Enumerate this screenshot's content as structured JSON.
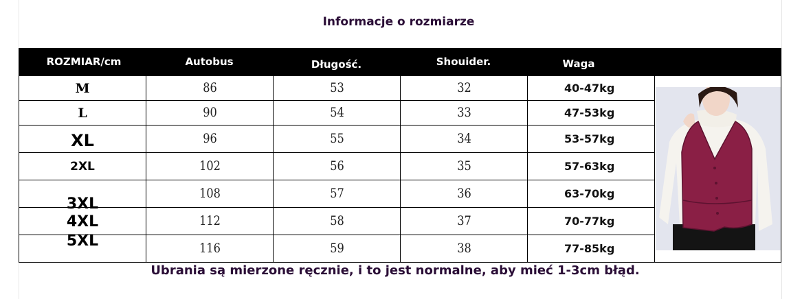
{
  "title": "Informacje o rozmiarze",
  "headers": [
    "ROZMIAR/cm",
    "Autobus",
    "Długość.",
    "Shouider.",
    "Waga"
  ],
  "rows": [
    {
      "size": "M",
      "bust": "86",
      "length": "53",
      "shoulder": "32",
      "weight": "40-47kg"
    },
    {
      "size": "L",
      "bust": "90",
      "length": "54",
      "shoulder": "33",
      "weight": "47-53kg"
    },
    {
      "size": "XL",
      "bust": "96",
      "length": "55",
      "shoulder": "34",
      "weight": "53-57kg"
    },
    {
      "size": "2XL",
      "bust": "102",
      "length": "56",
      "shoulder": "35",
      "weight": "57-63kg"
    },
    {
      "size": "3XL",
      "bust": "108",
      "length": "57",
      "shoulder": "36",
      "weight": "63-70kg"
    },
    {
      "size": "4XL",
      "bust": "112",
      "length": "58",
      "shoulder": "37",
      "weight": "70-77kg"
    },
    {
      "size": "5XL",
      "bust": "116",
      "length": "59",
      "shoulder": "38",
      "weight": "77-85kg"
    }
  ],
  "note": "Ubrania są mierzone ręcznie, i to jest normalne, aby mieć 1-3cm błąd.",
  "colors": {
    "title": "#2a0d36",
    "header_bg": "#000000",
    "vest": "#8a1f45"
  }
}
